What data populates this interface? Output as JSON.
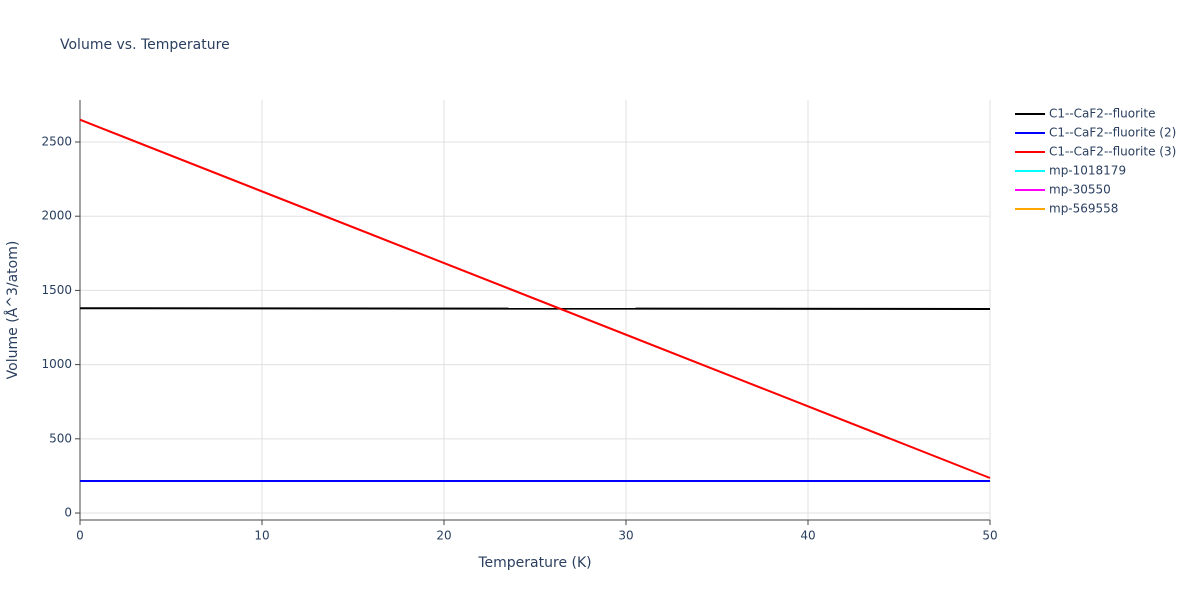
{
  "chart_data": {
    "type": "line",
    "title": "Volume vs. Temperature",
    "x_label": "Temperature (K)",
    "y_label": "Volume (Å^3/atom)",
    "x": [
      0,
      50
    ],
    "series": [
      {
        "name": "C1--CaF2--fluorite",
        "color": "#000000",
        "values": [
          1380,
          1375
        ]
      },
      {
        "name": "C1--CaF2--fluorite (2)",
        "color": "#0000ff",
        "values": [
          216,
          216
        ]
      },
      {
        "name": "C1--CaF2--fluorite (3)",
        "color": "#ff0000",
        "values": [
          2650,
          236
        ]
      },
      {
        "name": "mp-1018179",
        "color": "#00ffff",
        "values": [
          null,
          null
        ]
      },
      {
        "name": "mp-30550",
        "color": "#ff00ff",
        "values": [
          null,
          null
        ]
      },
      {
        "name": "mp-569558",
        "color": "#ffa500",
        "values": [
          null,
          null
        ]
      }
    ],
    "xlim": [
      0,
      50
    ],
    "xticks": [
      0,
      10,
      20,
      30,
      40,
      50
    ],
    "ylim": [
      -47,
      2783
    ],
    "yticks": [
      0,
      500,
      1000,
      1500,
      2000,
      2500
    ],
    "grid": true,
    "legend": "outside-right"
  }
}
